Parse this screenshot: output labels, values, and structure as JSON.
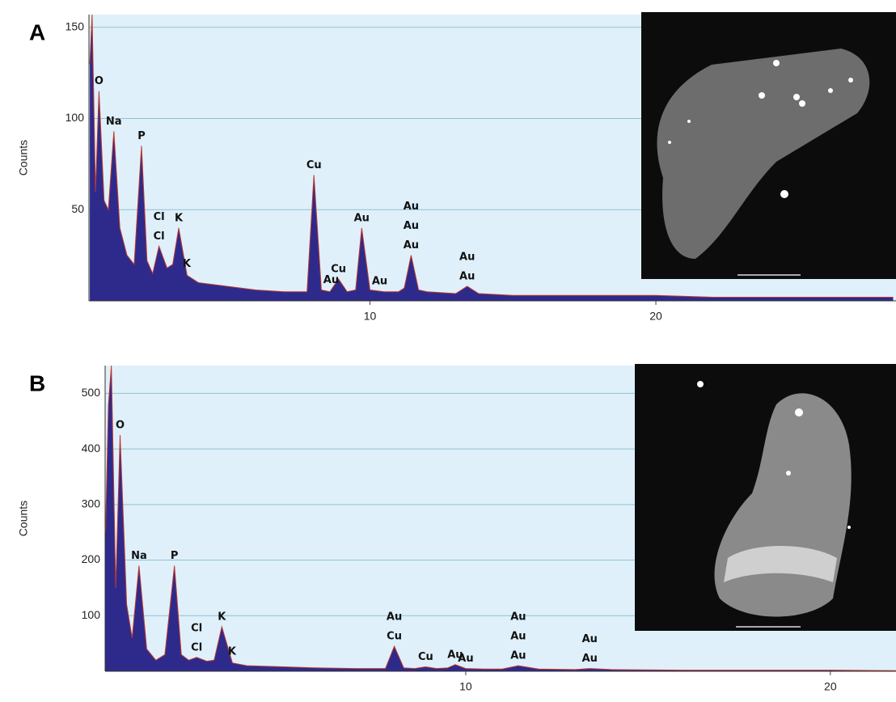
{
  "chart_data": [
    {
      "type": "area",
      "panel_label": "A",
      "y_label": "Counts",
      "color": "#2e2a8c",
      "line_color": "#c0392b",
      "background": "#dff0fb",
      "grid": true,
      "x": [
        0.2,
        0.28,
        0.4,
        0.52,
        0.7,
        0.85,
        1.04,
        1.25,
        1.5,
        1.75,
        2.01,
        2.2,
        2.4,
        2.62,
        2.9,
        3.1,
        3.31,
        3.6,
        4,
        5,
        6,
        7,
        7.8,
        8.04,
        8.3,
        8.6,
        8.9,
        9.2,
        9.5,
        9.71,
        10,
        10.5,
        11,
        11.2,
        11.44,
        11.7,
        12,
        13,
        13.4,
        13.8,
        15,
        18,
        20,
        22,
        25,
        28.3
      ],
      "values": [
        130,
        157,
        60,
        115,
        55,
        50,
        93,
        40,
        25,
        20,
        85,
        22,
        15,
        30,
        18,
        20,
        40,
        14,
        10,
        8,
        6,
        5,
        5,
        69,
        6,
        5,
        12,
        5,
        6,
        40,
        6,
        5,
        5,
        7,
        25,
        6,
        5,
        4,
        8,
        4,
        3,
        3,
        3,
        2,
        2,
        2
      ],
      "xlim": [
        0.17,
        28.4
      ],
      "ylim": [
        0,
        157
      ],
      "xticks": [
        10,
        20
      ],
      "yticks": [
        50,
        100,
        150
      ],
      "labels": [
        {
          "text": "O",
          "x": 0.52
        },
        {
          "text": "Na",
          "x": 1.04
        },
        {
          "text": "P",
          "x": 2.01
        },
        {
          "text": "Cl",
          "x": 2.62
        },
        {
          "text": "Cl",
          "x": 2.62
        },
        {
          "text": "K",
          "x": 3.31
        },
        {
          "text": "K",
          "x": 3.59
        },
        {
          "text": "Cu",
          "x": 8.04
        },
        {
          "text": "Au",
          "x": 8.64
        },
        {
          "text": "Cu",
          "x": 8.9
        },
        {
          "text": "Au",
          "x": 9.71
        },
        {
          "text": "Au",
          "x": 10.34
        },
        {
          "text": "Au",
          "x": 11.44
        },
        {
          "text": "Au",
          "x": 11.44
        },
        {
          "text": "Au",
          "x": 11.44
        },
        {
          "text": "Au",
          "x": 13.4
        },
        {
          "text": "Au",
          "x": 13.4
        }
      ]
    },
    {
      "type": "area",
      "panel_label": "B",
      "y_label": "Counts",
      "color": "#2e2a8c",
      "line_color": "#c0392b",
      "background": "#dff0fb",
      "grid": true,
      "x": [
        0.12,
        0.2,
        0.28,
        0.4,
        0.52,
        0.7,
        0.85,
        1.04,
        1.25,
        1.5,
        1.75,
        2.01,
        2.2,
        2.4,
        2.62,
        2.9,
        3.1,
        3.31,
        3.6,
        4,
        5,
        6,
        7,
        7.8,
        8.04,
        8.3,
        8.6,
        8.9,
        9.2,
        9.5,
        9.71,
        10,
        10.5,
        11,
        11.44,
        12,
        13,
        13.4,
        14,
        16,
        18,
        20,
        21.8
      ],
      "values": [
        250,
        480,
        550,
        150,
        425,
        120,
        60,
        190,
        40,
        20,
        30,
        190,
        30,
        20,
        25,
        18,
        20,
        80,
        15,
        10,
        8,
        6,
        5,
        5,
        45,
        6,
        5,
        8,
        5,
        6,
        12,
        5,
        4,
        4,
        10,
        4,
        3,
        5,
        3,
        2,
        2,
        2,
        1
      ],
      "xlim": [
        0.11,
        21.8
      ],
      "ylim": [
        0,
        550
      ],
      "xticks": [
        10,
        20
      ],
      "yticks": [
        100,
        200,
        300,
        400,
        500
      ],
      "labels": [
        {
          "text": "O",
          "x": 0.52
        },
        {
          "text": "Na",
          "x": 1.04
        },
        {
          "text": "P",
          "x": 2.01
        },
        {
          "text": "Cl",
          "x": 2.62
        },
        {
          "text": "Cl",
          "x": 2.62
        },
        {
          "text": "K",
          "x": 3.31
        },
        {
          "text": "K",
          "x": 3.59
        },
        {
          "text": "Cu",
          "x": 8.04
        },
        {
          "text": "Au",
          "x": 8.04
        },
        {
          "text": "Cu",
          "x": 8.9
        },
        {
          "text": "Au",
          "x": 9.71
        },
        {
          "text": "Au",
          "x": 10.0
        },
        {
          "text": "Au",
          "x": 11.44
        },
        {
          "text": "Au",
          "x": 11.44
        },
        {
          "text": "Au",
          "x": 11.44
        },
        {
          "text": "Au",
          "x": 13.4
        },
        {
          "text": "Au",
          "x": 13.4
        }
      ]
    }
  ]
}
